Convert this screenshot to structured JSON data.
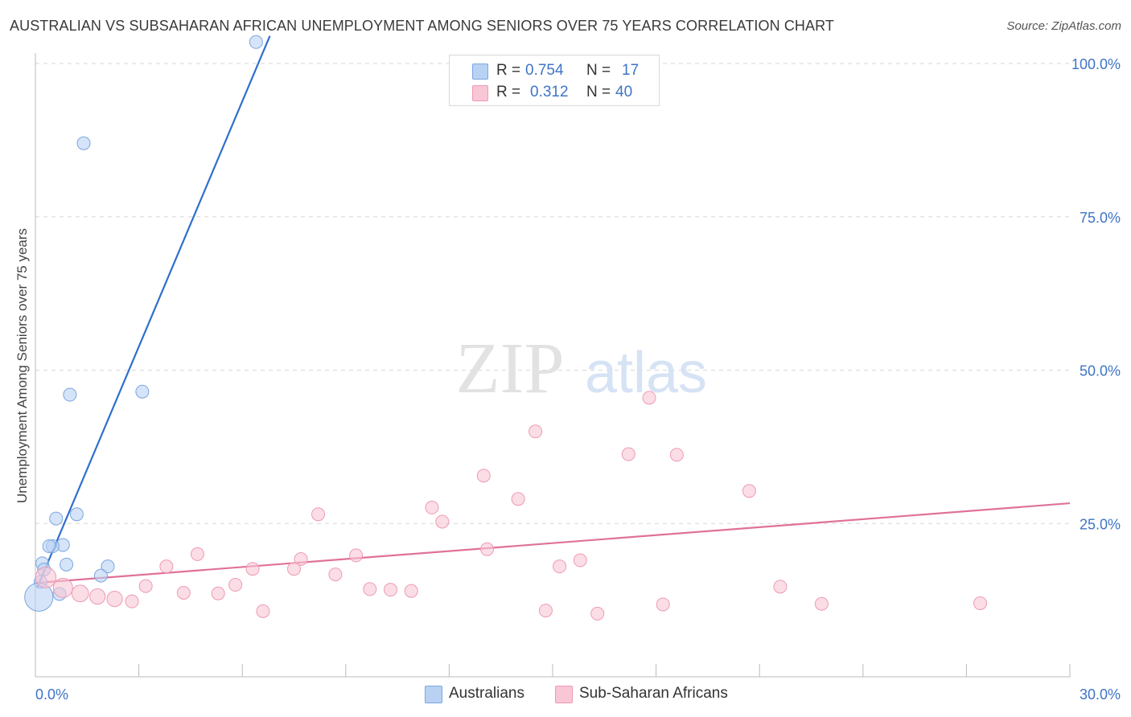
{
  "title": "AUSTRALIAN VS SUBSAHARAN AFRICAN UNEMPLOYMENT AMONG SENIORS OVER 75 YEARS CORRELATION CHART",
  "source": "Source: ZipAtlas.com",
  "watermark": {
    "zip": "ZIP",
    "atlas": "atlas"
  },
  "legend": {
    "r_label": "R =",
    "n_label": "N =",
    "australians": {
      "r": "0.754",
      "n": "17"
    },
    "subsaharan": {
      "r": "0.312",
      "n": "40"
    }
  },
  "bottom_legend": {
    "australians": "Australians",
    "subsaharan": "Sub-Saharan Africans"
  },
  "colors": {
    "blue_fill": "#b9d2f3",
    "blue_stroke": "#7aa6e0",
    "blue_line": "#2f6fcc",
    "pink_fill": "#f9c6d5",
    "pink_stroke": "#ee9ab3",
    "pink_line": "#e0719a",
    "tick_text": "#3f74c6",
    "grid": "#d7d7d7"
  },
  "chart_data": {
    "type": "scatter",
    "title": "AUSTRALIAN VS SUBSAHARAN AFRICAN UNEMPLOYMENT AMONG SENIORS OVER 75 YEARS CORRELATION CHART",
    "xlabel": "",
    "ylabel": "Unemployment Among Seniors over 75 years",
    "xlim": [
      0,
      30
    ],
    "ylim": [
      0,
      105
    ],
    "x_ticks": [
      "0.0%",
      "30.0%"
    ],
    "y_ticks": [
      {
        "value": 25,
        "label": "25.0%"
      },
      {
        "value": 50,
        "label": "50.0%"
      },
      {
        "value": 75,
        "label": "75.0%"
      },
      {
        "value": 100,
        "label": "100.0%"
      }
    ],
    "grid": true,
    "series": [
      {
        "name": "Australians",
        "color": "blue",
        "r": 0.754,
        "n": 17,
        "points": [
          {
            "x": 6.4,
            "y": 103.5,
            "s": 1
          },
          {
            "x": 1.4,
            "y": 87.0,
            "s": 1
          },
          {
            "x": 3.1,
            "y": 46.5,
            "s": 1
          },
          {
            "x": 1.0,
            "y": 46.0,
            "s": 1
          },
          {
            "x": 1.2,
            "y": 26.5,
            "s": 1
          },
          {
            "x": 0.6,
            "y": 25.8,
            "s": 1
          },
          {
            "x": 0.8,
            "y": 21.5,
            "s": 1
          },
          {
            "x": 0.5,
            "y": 21.3,
            "s": 1
          },
          {
            "x": 0.4,
            "y": 21.3,
            "s": 1
          },
          {
            "x": 0.2,
            "y": 18.5,
            "s": 1
          },
          {
            "x": 0.9,
            "y": 18.3,
            "s": 1
          },
          {
            "x": 2.1,
            "y": 18.0,
            "s": 1
          },
          {
            "x": 0.25,
            "y": 17.5,
            "s": 1
          },
          {
            "x": 1.9,
            "y": 16.5,
            "s": 1
          },
          {
            "x": 0.15,
            "y": 15.5,
            "s": 1
          },
          {
            "x": 0.7,
            "y": 13.5,
            "s": 1
          },
          {
            "x": 0.1,
            "y": 13.0,
            "s": 2.2
          }
        ],
        "trend": {
          "x1": 0.05,
          "y1": 14.5,
          "x2": 6.8,
          "y2": 104.5
        }
      },
      {
        "name": "Sub-Saharan Africans",
        "color": "pink",
        "r": 0.312,
        "n": 40,
        "points": [
          {
            "x": 17.8,
            "y": 45.5,
            "s": 1
          },
          {
            "x": 14.5,
            "y": 40.0,
            "s": 1
          },
          {
            "x": 17.2,
            "y": 36.3,
            "s": 1
          },
          {
            "x": 18.6,
            "y": 36.2,
            "s": 1
          },
          {
            "x": 13.0,
            "y": 32.8,
            "s": 1
          },
          {
            "x": 20.7,
            "y": 30.3,
            "s": 1
          },
          {
            "x": 14.0,
            "y": 29.0,
            "s": 1
          },
          {
            "x": 11.5,
            "y": 27.6,
            "s": 1
          },
          {
            "x": 8.2,
            "y": 26.5,
            "s": 1
          },
          {
            "x": 11.8,
            "y": 25.3,
            "s": 1
          },
          {
            "x": 13.1,
            "y": 20.8,
            "s": 1
          },
          {
            "x": 4.7,
            "y": 20.0,
            "s": 1
          },
          {
            "x": 9.3,
            "y": 19.8,
            "s": 1
          },
          {
            "x": 7.7,
            "y": 19.2,
            "s": 1
          },
          {
            "x": 15.8,
            "y": 19.0,
            "s": 1
          },
          {
            "x": 3.8,
            "y": 18.0,
            "s": 1
          },
          {
            "x": 15.2,
            "y": 18.0,
            "s": 1
          },
          {
            "x": 6.3,
            "y": 17.6,
            "s": 1
          },
          {
            "x": 7.5,
            "y": 17.6,
            "s": 1
          },
          {
            "x": 8.7,
            "y": 16.7,
            "s": 1
          },
          {
            "x": 0.3,
            "y": 16.2,
            "s": 1.6
          },
          {
            "x": 5.8,
            "y": 15.0,
            "s": 1
          },
          {
            "x": 3.2,
            "y": 14.8,
            "s": 1
          },
          {
            "x": 21.6,
            "y": 14.7,
            "s": 1
          },
          {
            "x": 0.8,
            "y": 14.5,
            "s": 1.5
          },
          {
            "x": 9.7,
            "y": 14.3,
            "s": 1
          },
          {
            "x": 10.3,
            "y": 14.2,
            "s": 1
          },
          {
            "x": 10.9,
            "y": 14.0,
            "s": 1
          },
          {
            "x": 4.3,
            "y": 13.7,
            "s": 1
          },
          {
            "x": 1.3,
            "y": 13.6,
            "s": 1.3
          },
          {
            "x": 5.3,
            "y": 13.6,
            "s": 1
          },
          {
            "x": 1.8,
            "y": 13.1,
            "s": 1.2
          },
          {
            "x": 2.3,
            "y": 12.7,
            "s": 1.2
          },
          {
            "x": 2.8,
            "y": 12.3,
            "s": 1
          },
          {
            "x": 18.2,
            "y": 11.8,
            "s": 1
          },
          {
            "x": 27.4,
            "y": 12.0,
            "s": 1
          },
          {
            "x": 22.8,
            "y": 11.9,
            "s": 1
          },
          {
            "x": 14.8,
            "y": 10.8,
            "s": 1
          },
          {
            "x": 6.6,
            "y": 10.7,
            "s": 1
          },
          {
            "x": 16.3,
            "y": 10.3,
            "s": 1
          }
        ],
        "trend": {
          "x1": 0.0,
          "y1": 15.3,
          "x2": 30.0,
          "y2": 28.3
        }
      }
    ]
  }
}
